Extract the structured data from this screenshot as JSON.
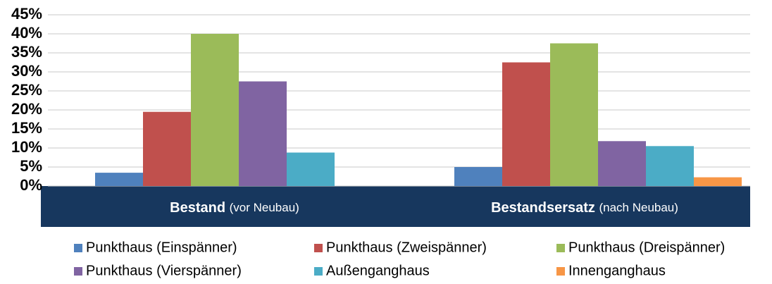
{
  "chart_data": {
    "type": "bar",
    "categories": [
      {
        "name": "Bestand",
        "note": "(vor Neubau)"
      },
      {
        "name": "Bestandsersatz",
        "note": "(nach Neubau)"
      }
    ],
    "series": [
      {
        "name": "Punkthaus (Einspänner)",
        "color": "#4f81bd",
        "values": [
          3.5,
          5
        ]
      },
      {
        "name": "Punkthaus (Zweispänner)",
        "color": "#c0504d",
        "values": [
          19.5,
          32.5
        ]
      },
      {
        "name": "Punkthaus (Dreispänner)",
        "color": "#9bbb59",
        "values": [
          40,
          37.5
        ]
      },
      {
        "name": "Punkthaus (Vierspänner)",
        "color": "#8064a2",
        "values": [
          27.5,
          11.8
        ]
      },
      {
        "name": "Außenganghaus",
        "color": "#4bacc6",
        "values": [
          8.8,
          10.5
        ]
      },
      {
        "name": "Innenganghaus",
        "color": "#f79646",
        "values": [
          0,
          2.3
        ]
      }
    ],
    "ylim": [
      0,
      45
    ],
    "yticks": [
      {
        "value": 0,
        "label": "0%"
      },
      {
        "value": 5,
        "label": "5%"
      },
      {
        "value": 10,
        "label": "10%"
      },
      {
        "value": 15,
        "label": "15%"
      },
      {
        "value": 20,
        "label": "20%"
      },
      {
        "value": 25,
        "label": "25%"
      },
      {
        "value": 30,
        "label": "30%"
      },
      {
        "value": 35,
        "label": "35%"
      },
      {
        "value": 40,
        "label": "40%"
      },
      {
        "value": 45,
        "label": "45%"
      }
    ],
    "grid": true
  }
}
